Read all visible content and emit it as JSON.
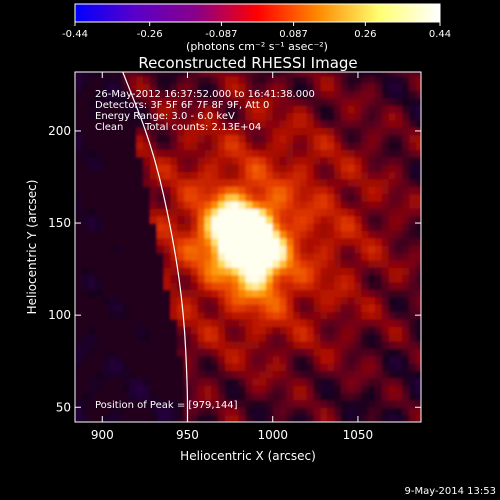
{
  "chart_data": {
    "type": "heatmap",
    "title": "Reconstructed RHESSI Image",
    "xlabel": "Heliocentric X (arcsec)",
    "ylabel": "Heliocentric Y (arcsec)",
    "xlim": [
      884,
      1087
    ],
    "ylim": [
      42,
      232
    ],
    "x_ticks": [
      900,
      950,
      1000,
      1050
    ],
    "y_ticks": [
      50,
      100,
      150,
      200
    ],
    "grid": false,
    "colorbar": {
      "position": "top",
      "range": [
        -0.44,
        0.44
      ],
      "tick_values": [
        -0.44,
        -0.26,
        -0.087,
        0.087,
        0.26,
        0.44
      ],
      "tick_labels": [
        "-0.44",
        "-0.26",
        "-0.087",
        "0.087",
        "0.26",
        "0.44"
      ],
      "units": "(photons cm⁻² s⁻¹ asec⁻²)",
      "colors": [
        "#0000ff",
        "#5a00c8",
        "#8a0088",
        "#ff0000",
        "#ff8a00",
        "#ffff70",
        "#ffffff"
      ]
    },
    "annotations": {
      "time_range": "26-May-2012 16:37:52.000 to 16:41:38.000",
      "detectors": "Detectors: 3F 5F 6F 7F 8F 9F, Att 0",
      "energy_range": "Energy Range: 3.0 - 6.0 keV",
      "clean": "Clean",
      "total_counts": "Total counts: 2.13E+04",
      "position_of_peak": "Position of Peak = [979,144]"
    },
    "peak": {
      "x": 979,
      "y": 144,
      "value": 0.44
    },
    "limb": [
      [
        912,
        232
      ],
      [
        930,
        190
      ],
      [
        942,
        140
      ],
      [
        948,
        100
      ],
      [
        950,
        60
      ],
      [
        950,
        42
      ]
    ]
  },
  "footer": {
    "timestamp": "9-May-2014 13:53"
  }
}
